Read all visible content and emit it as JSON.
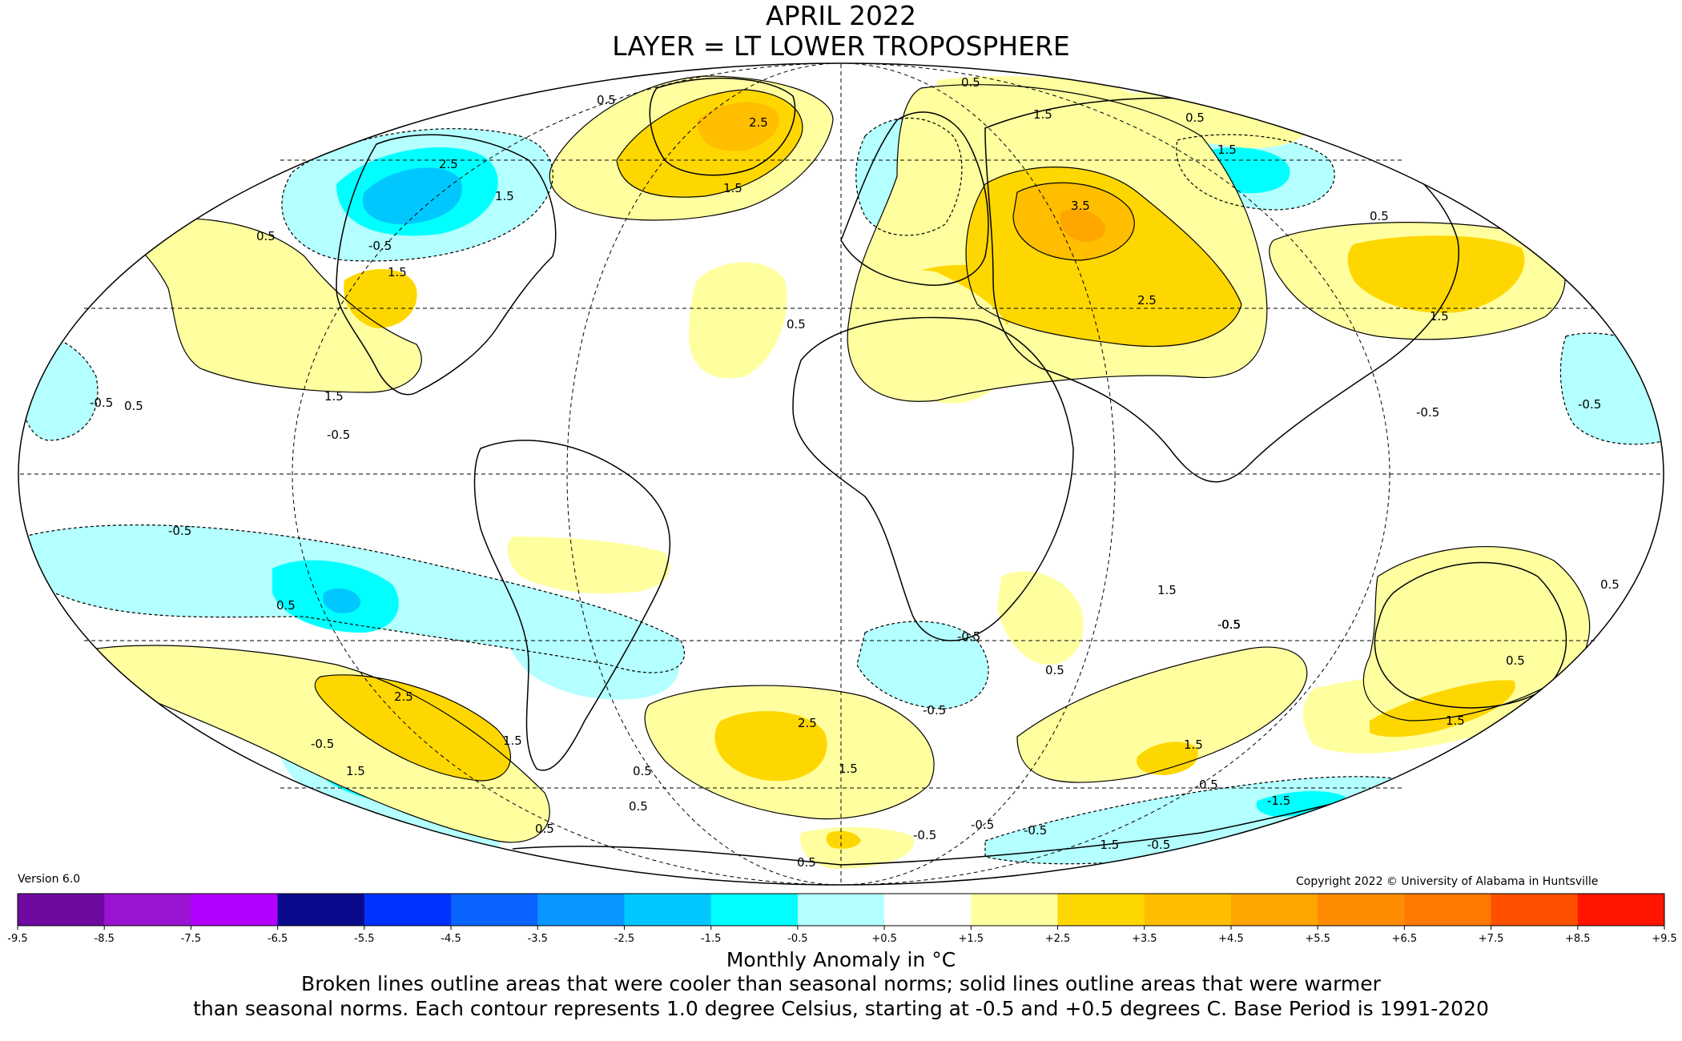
{
  "title": {
    "line1": "APRIL 2022",
    "line2": "LAYER = LT LOWER TROPOSPHERE"
  },
  "version": "Version 6.0",
  "copyright": "Copyright 2022 © University of Alabama in Huntsville",
  "colorbar": {
    "ticks": [
      "-9.5",
      "-8.5",
      "-7.5",
      "-6.5",
      "-5.5",
      "-4.5",
      "-3.5",
      "-2.5",
      "-1.5",
      "-0.5",
      "+0.5",
      "+1.5",
      "+2.5",
      "+3.5",
      "+4.5",
      "+5.5",
      "+6.5",
      "+7.5",
      "+8.5",
      "+9.5"
    ],
    "colors": [
      "#3c0a50",
      "#6e0aa0",
      "#9a14d2",
      "#b400ff",
      "#0a0a8c",
      "#0032ff",
      "#0a64ff",
      "#0a96ff",
      "#00c8ff",
      "#00ffff",
      "#b4ffff",
      "#ffffff",
      "#ffffa0",
      "#ffd700",
      "#ffbe00",
      "#ffa500",
      "#ff8c00",
      "#ff7800",
      "#ff5000",
      "#ff1400",
      "#e60000",
      "#be0000"
    ],
    "units_label": "Monthly Anomaly in °C"
  },
  "caption": {
    "line1": "Broken lines outline areas that were cooler than seasonal norms; solid lines outline areas that were warmer",
    "line2": "than seasonal norms. Each contour represents 1.0 degree Celsius, starting at -0.5 and +0.5 degrees C. Base Period is 1991-2020"
  },
  "map": {
    "projection": "Mollweide",
    "fill_colors": {
      "cool_1": "#b4ffff",
      "cool_2": "#00ffff",
      "cool_3": "#00c8ff",
      "warm_1": "#ffffa0",
      "warm_2": "#ffd700",
      "warm_3": "#ffbe00",
      "warm_4": "#ffa500"
    },
    "contour_labels": [
      {
        "id": "c1",
        "text": "0.5"
      },
      {
        "id": "c2",
        "text": "0.5"
      },
      {
        "id": "c3",
        "text": "2.5"
      },
      {
        "id": "c4",
        "text": "1.5"
      },
      {
        "id": "c5",
        "text": "0.5"
      },
      {
        "id": "c6",
        "text": "1.5"
      },
      {
        "id": "c7",
        "text": "1.5"
      },
      {
        "id": "c8",
        "text": "2.5"
      },
      {
        "id": "c9",
        "text": "1.5"
      },
      {
        "id": "c10",
        "text": "0.5"
      },
      {
        "id": "c11",
        "text": "-0.5"
      },
      {
        "id": "c12",
        "text": "1.5"
      },
      {
        "id": "c13",
        "text": "0.5"
      },
      {
        "id": "c14",
        "text": "1.5"
      },
      {
        "id": "c15",
        "text": "0.5"
      },
      {
        "id": "c16",
        "text": "3.5"
      },
      {
        "id": "c17",
        "text": "2.5"
      },
      {
        "id": "c18",
        "text": "0.5"
      },
      {
        "id": "c19",
        "text": "1.5"
      },
      {
        "id": "c20",
        "text": "-0.5"
      },
      {
        "id": "c21",
        "text": "-0.5"
      },
      {
        "id": "c22",
        "text": "-0.5"
      },
      {
        "id": "c23",
        "text": "-0.5"
      },
      {
        "id": "c24",
        "text": "-0.5"
      },
      {
        "id": "c25",
        "text": "1.5"
      },
      {
        "id": "c26",
        "text": "0.5"
      },
      {
        "id": "c27",
        "text": "-0.5"
      },
      {
        "id": "c28",
        "text": "0.5"
      },
      {
        "id": "c29",
        "text": "-0.5"
      },
      {
        "id": "c30",
        "text": "0.5"
      },
      {
        "id": "c31",
        "text": "-0.5"
      },
      {
        "id": "c32",
        "text": "0.5"
      },
      {
        "id": "c33",
        "text": "2.5"
      },
      {
        "id": "c34",
        "text": "1.5"
      },
      {
        "id": "c35",
        "text": "-0.5"
      },
      {
        "id": "c36",
        "text": "1.5"
      },
      {
        "id": "c37",
        "text": "0.5"
      },
      {
        "id": "c38",
        "text": "2.5"
      },
      {
        "id": "c39",
        "text": "1.5"
      },
      {
        "id": "c40",
        "text": "0.5"
      },
      {
        "id": "c41",
        "text": "0.5"
      },
      {
        "id": "c42",
        "text": "1.5"
      },
      {
        "id": "c43",
        "text": "0.5"
      },
      {
        "id": "c44",
        "text": "-1.5"
      },
      {
        "id": "c45",
        "text": "1.5"
      },
      {
        "id": "c46",
        "text": "-0.5"
      },
      {
        "id": "c47",
        "text": "-0.5"
      },
      {
        "id": "c48",
        "text": "-1.5"
      },
      {
        "id": "c49",
        "text": "-0.5"
      },
      {
        "id": "c50",
        "text": "0.5"
      },
      {
        "id": "c51",
        "text": "-0.5"
      },
      {
        "id": "c52",
        "text": "0.5"
      }
    ]
  }
}
